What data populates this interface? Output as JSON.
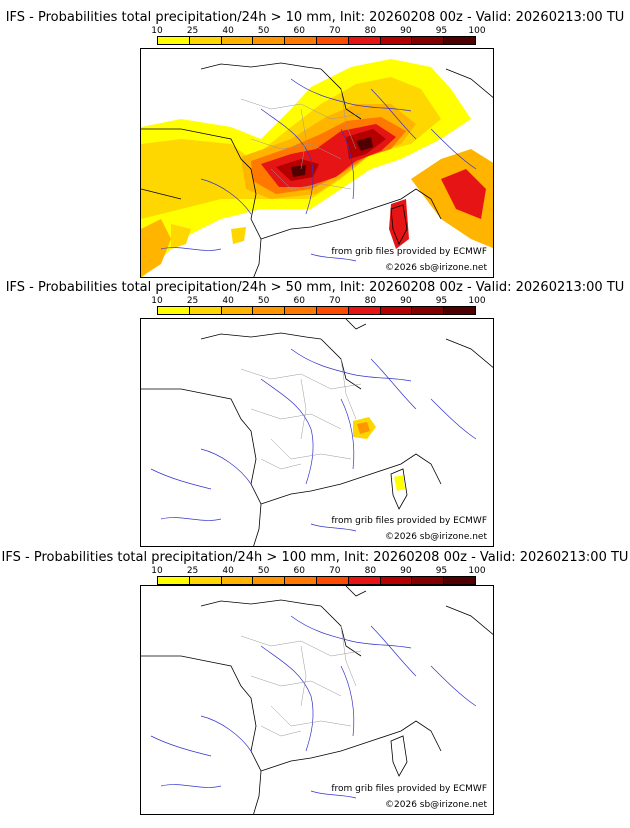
{
  "colorbar": {
    "labels": [
      "10",
      "25",
      "40",
      "50",
      "60",
      "70",
      "80",
      "90",
      "95",
      "100"
    ],
    "colors": [
      "#ffff00",
      "#ffd700",
      "#ffb400",
      "#ff9600",
      "#ff7800",
      "#ff4b00",
      "#e61414",
      "#b40000",
      "#820000",
      "#500000"
    ]
  },
  "panels": [
    {
      "title": "IFS - Probabilities total precipitation/24h > 10 mm, Init: 20260208 00z - Valid: 20260213:00 TU",
      "threshold_mm": 10,
      "credit_source": "from grib files provided by ECMWF",
      "credit_copyright": "©2026 sb@irizone.net"
    },
    {
      "title": "IFS - Probabilities total precipitation/24h > 50 mm, Init: 20260208 00z - Valid: 20260213:00 TU",
      "threshold_mm": 50,
      "credit_source": "from grib files provided by ECMWF",
      "credit_copyright": "©2026 sb@irizone.net"
    },
    {
      "title": "IFS - Probabilities total precipitation/24h > 100 mm, Init: 20260208 00z - Valid: 20260213:00 TU",
      "threshold_mm": 100,
      "credit_source": "from grib files provided by ECMWF",
      "credit_copyright": "©2026 sb@irizone.net"
    }
  ],
  "map_colors": {
    "coast": "#000000",
    "rivers": "#3333cc",
    "borders": "#999999"
  }
}
